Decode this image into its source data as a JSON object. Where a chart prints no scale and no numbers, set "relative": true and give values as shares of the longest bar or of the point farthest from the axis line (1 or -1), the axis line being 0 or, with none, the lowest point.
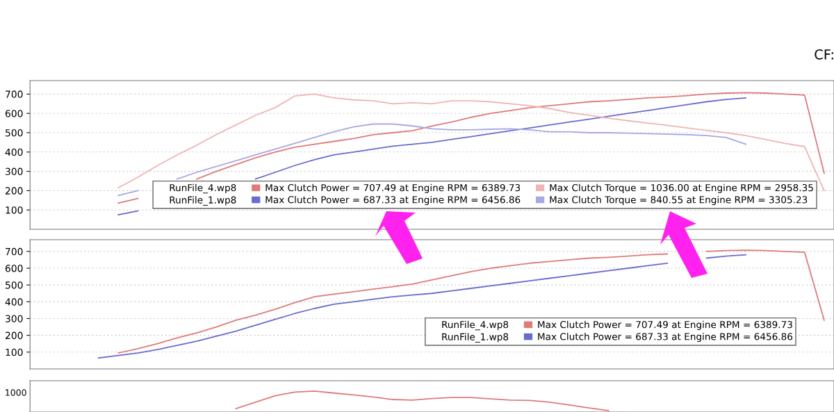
{
  "chart_data": [
    {
      "type": "line",
      "categories": [
        null,
        null,
        null,
        null,
        null,
        null,
        null,
        null,
        null,
        null,
        null,
        null,
        null,
        null,
        null,
        null,
        null,
        null,
        null,
        null,
        null,
        null,
        null,
        null,
        null,
        null,
        null,
        null,
        null,
        null,
        null,
        null,
        null,
        null,
        null,
        null,
        null,
        null,
        null,
        null,
        null
      ],
      "series": [
        {
          "name": "Max Clutch Power = 707.49 at Engine RPM = 6389.73",
          "color": "#e07a7a",
          "values": [
            null,
            null,
            null,
            null,
            135,
            160,
            null,
            null,
            260,
            300,
            335,
            370,
            400,
            425,
            440,
            455,
            470,
            490,
            500,
            510,
            535,
            555,
            580,
            600,
            615,
            630,
            640,
            650,
            660,
            665,
            672,
            680,
            685,
            692,
            700,
            705,
            707,
            705,
            700,
            695,
            290
          ]
        },
        {
          "name": "Max Clutch Power = 687.33 at Engine RPM = 6456.86",
          "color": "#6a6ad0",
          "values": [
            null,
            null,
            null,
            null,
            75,
            95,
            null,
            null,
            null,
            null,
            null,
            260,
            295,
            330,
            360,
            385,
            400,
            415,
            430,
            440,
            450,
            465,
            480,
            495,
            510,
            525,
            540,
            555,
            570,
            585,
            600,
            615,
            630,
            645,
            660,
            672,
            680,
            null,
            null,
            null,
            null
          ]
        },
        {
          "name": "Max Clutch Torque = 1036.00 at Engine RPM = 2958.35",
          "color": "#f0b4b4",
          "values": [
            null,
            null,
            null,
            null,
            215,
            270,
            330,
            385,
            435,
            490,
            540,
            590,
            630,
            690,
            700,
            680,
            670,
            665,
            650,
            655,
            650,
            665,
            665,
            660,
            650,
            640,
            625,
            605,
            590,
            575,
            562,
            550,
            538,
            525,
            512,
            500,
            485,
            465,
            445,
            428,
            200
          ]
        },
        {
          "name": "Max Clutch Torque = 840.55 at Engine RPM = 3305.23",
          "color": "#a8a8e4",
          "values": [
            null,
            null,
            null,
            null,
            175,
            200,
            null,
            260,
            295,
            325,
            355,
            385,
            415,
            445,
            475,
            505,
            530,
            545,
            545,
            535,
            520,
            515,
            515,
            518,
            520,
            515,
            505,
            505,
            500,
            500,
            498,
            495,
            492,
            490,
            485,
            475,
            440,
            null,
            null,
            null,
            null
          ]
        }
      ],
      "ylim": [
        0,
        770
      ],
      "yticks": [
        100,
        200,
        300,
        400,
        500,
        600,
        700
      ],
      "grid": "y",
      "legend": "bottom right",
      "tick_labels": "y",
      "annotations": [
        "RunFile_4.wp8",
        "RunFile_1.wp8",
        "CF:"
      ]
    },
    {
      "type": "line",
      "categories": [
        null,
        null,
        null,
        null,
        null,
        null,
        null,
        null,
        null,
        null,
        null,
        null,
        null,
        null,
        null,
        null,
        null,
        null,
        null,
        null,
        null,
        null,
        null,
        null,
        null,
        null,
        null,
        null,
        null,
        null,
        null,
        null,
        null,
        null,
        null,
        null,
        null,
        null,
        null,
        null,
        null
      ],
      "series": [
        {
          "name": "Max Clutch Power = 707.49 at Engine RPM = 6389.73",
          "color": "#e07a7a",
          "values": [
            null,
            null,
            null,
            null,
            95,
            120,
            150,
            185,
            215,
            250,
            290,
            320,
            355,
            395,
            430,
            445,
            460,
            475,
            490,
            505,
            530,
            555,
            580,
            600,
            615,
            630,
            640,
            650,
            660,
            665,
            672,
            680,
            685,
            null,
            700,
            705,
            707,
            705,
            700,
            695,
            290
          ]
        },
        {
          "name": "Max Clutch Power = 687.33 at Engine RPM = 6456.86",
          "color": "#6a6ad0",
          "values": [
            null,
            null,
            null,
            65,
            80,
            95,
            115,
            140,
            165,
            195,
            225,
            260,
            295,
            330,
            360,
            385,
            400,
            415,
            430,
            440,
            450,
            465,
            480,
            495,
            510,
            525,
            540,
            555,
            570,
            585,
            600,
            615,
            630,
            null,
            660,
            672,
            680,
            null,
            null,
            null,
            null
          ]
        }
      ],
      "ylim": [
        0,
        770
      ],
      "yticks": [
        100,
        200,
        300,
        400,
        500,
        600,
        700
      ],
      "grid": "y",
      "legend": "bottom right",
      "tick_labels": "y",
      "annotations": [
        "RunFile_4.wp8",
        "RunFile_1.wp8"
      ]
    },
    {
      "type": "line",
      "categories": [
        null,
        null,
        null,
        null,
        null,
        null,
        null,
        null,
        null,
        null,
        null,
        null,
        null,
        null,
        null,
        null,
        null,
        null,
        null,
        null,
        null,
        null,
        null,
        null,
        null,
        null,
        null,
        null,
        null,
        null,
        null,
        null,
        null,
        null,
        null,
        null,
        null,
        null,
        null,
        null,
        null
      ],
      "series": [
        {
          "color": "#e07a7a",
          "values": [
            null,
            null,
            null,
            null,
            null,
            null,
            null,
            null,
            null,
            null,
            0.1,
            0.43,
            0.76,
            0.95,
            1,
            0.9,
            0.81,
            0.7,
            0.57,
            0.54,
            0.62,
            0.67,
            0.67,
            0.6,
            0.54,
            0.52,
            0.43,
            0.29,
            0.14,
            0,
            null,
            null,
            null,
            null,
            null,
            null,
            null,
            null,
            null,
            null,
            null
          ]
        }
      ],
      "relative": true,
      "annotations": [
        "1000"
      ]
    }
  ]
}
